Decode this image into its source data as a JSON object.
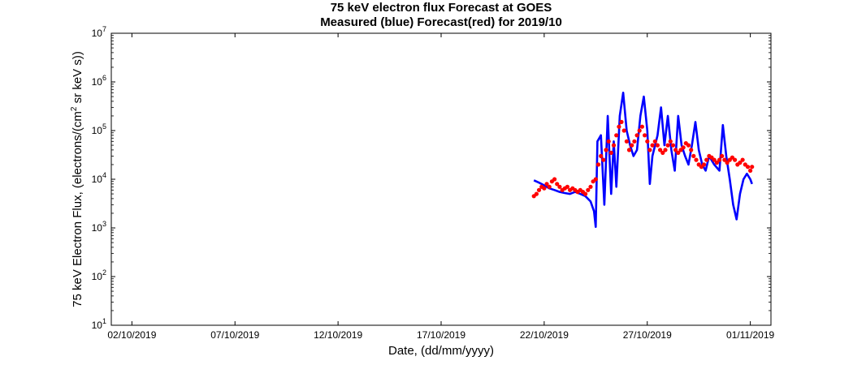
{
  "chart_data": {
    "type": "line",
    "title": "75 keV electron flux Forecast at GOES",
    "subtitle": "Measured (blue) Forecast(red) for 2019/10",
    "xlabel": "Date, (dd/mm/yyyy)",
    "ylabel": {
      "before": "75 keV Electron Flux, (electrons/(cm",
      "superscript": "2",
      "after": " sr keV s))"
    },
    "x_ticks": [
      "02/10/2019",
      "07/10/2019",
      "12/10/2019",
      "17/10/2019",
      "22/10/2019",
      "27/10/2019",
      "01/11/2019"
    ],
    "xlim": [
      "2019-10-01T00:00",
      "2019-11-02T00:00"
    ],
    "y_scale": "log",
    "ylim": [
      10,
      10000000
    ],
    "y_ticks": [
      {
        "base": "10",
        "exp": "1"
      },
      {
        "base": "10",
        "exp": "2"
      },
      {
        "base": "10",
        "exp": "3"
      },
      {
        "base": "10",
        "exp": "4"
      },
      {
        "base": "10",
        "exp": "5"
      },
      {
        "base": "10",
        "exp": "6"
      },
      {
        "base": "10",
        "exp": "7"
      }
    ],
    "grid": false,
    "series": [
      {
        "name": "Measured",
        "color": "#0000ff",
        "style": "line",
        "points": [
          [
            "2019-10-21T12:00",
            9500
          ],
          [
            "2019-10-21T18:00",
            8500
          ],
          [
            "2019-10-22T00:00",
            7500
          ],
          [
            "2019-10-22T06:00",
            6500
          ],
          [
            "2019-10-22T12:00",
            6000
          ],
          [
            "2019-10-22T18:00",
            5500
          ],
          [
            "2019-10-23T00:00",
            5200
          ],
          [
            "2019-10-23T06:00",
            5000
          ],
          [
            "2019-10-23T12:00",
            5500
          ],
          [
            "2019-10-23T18:00",
            5000
          ],
          [
            "2019-10-24T00:00",
            4500
          ],
          [
            "2019-10-24T06:00",
            3500
          ],
          [
            "2019-10-24T10:00",
            2200
          ],
          [
            "2019-10-24T12:00",
            1050
          ],
          [
            "2019-10-24T14:00",
            60000
          ],
          [
            "2019-10-24T18:00",
            80000
          ],
          [
            "2019-10-24T22:00",
            3000
          ],
          [
            "2019-10-25T02:00",
            200000
          ],
          [
            "2019-10-25T06:00",
            5000
          ],
          [
            "2019-10-25T09:00",
            60000
          ],
          [
            "2019-10-25T12:00",
            7000
          ],
          [
            "2019-10-25T16:00",
            200000
          ],
          [
            "2019-10-25T20:00",
            600000
          ],
          [
            "2019-10-26T00:00",
            100000
          ],
          [
            "2019-10-26T04:00",
            50000
          ],
          [
            "2019-10-26T08:00",
            30000
          ],
          [
            "2019-10-26T12:00",
            40000
          ],
          [
            "2019-10-26T16:00",
            200000
          ],
          [
            "2019-10-26T20:00",
            500000
          ],
          [
            "2019-10-27T00:00",
            100000
          ],
          [
            "2019-10-27T03:00",
            8000
          ],
          [
            "2019-10-27T06:00",
            30000
          ],
          [
            "2019-10-27T12:00",
            80000
          ],
          [
            "2019-10-27T16:00",
            300000
          ],
          [
            "2019-10-27T20:00",
            50000
          ],
          [
            "2019-10-28T00:00",
            200000
          ],
          [
            "2019-10-28T04:00",
            40000
          ],
          [
            "2019-10-28T08:00",
            15000
          ],
          [
            "2019-10-28T12:00",
            200000
          ],
          [
            "2019-10-28T16:00",
            50000
          ],
          [
            "2019-10-28T20:00",
            30000
          ],
          [
            "2019-10-29T00:00",
            20000
          ],
          [
            "2019-10-29T04:00",
            50000
          ],
          [
            "2019-10-29T08:00",
            150000
          ],
          [
            "2019-10-29T12:00",
            40000
          ],
          [
            "2019-10-29T16:00",
            20000
          ],
          [
            "2019-10-29T20:00",
            15000
          ],
          [
            "2019-10-30T00:00",
            30000
          ],
          [
            "2019-10-30T06:00",
            20000
          ],
          [
            "2019-10-30T12:00",
            15000
          ],
          [
            "2019-10-30T16:00",
            130000
          ],
          [
            "2019-10-30T20:00",
            30000
          ],
          [
            "2019-10-31T00:00",
            10000
          ],
          [
            "2019-10-31T04:00",
            3000
          ],
          [
            "2019-10-31T08:00",
            1500
          ],
          [
            "2019-10-31T12:00",
            5000
          ],
          [
            "2019-10-31T16:00",
            10000
          ],
          [
            "2019-10-31T20:00",
            13000
          ],
          [
            "2019-11-01T00:00",
            10000
          ],
          [
            "2019-11-01T02:00",
            8000
          ]
        ]
      },
      {
        "name": "Forecast",
        "color": "#ff0000",
        "style": "markers",
        "points": [
          [
            "2019-10-21T12:00",
            4500
          ],
          [
            "2019-10-21T15:00",
            5000
          ],
          [
            "2019-10-21T18:00",
            6000
          ],
          [
            "2019-10-21T21:00",
            7000
          ],
          [
            "2019-10-22T00:00",
            6500
          ],
          [
            "2019-10-22T03:00",
            8000
          ],
          [
            "2019-10-22T06:00",
            7000
          ],
          [
            "2019-10-22T09:00",
            9000
          ],
          [
            "2019-10-22T12:00",
            10000
          ],
          [
            "2019-10-22T15:00",
            8000
          ],
          [
            "2019-10-22T18:00",
            7000
          ],
          [
            "2019-10-22T21:00",
            6000
          ],
          [
            "2019-10-23T00:00",
            6500
          ],
          [
            "2019-10-23T03:00",
            7000
          ],
          [
            "2019-10-23T06:00",
            6000
          ],
          [
            "2019-10-23T09:00",
            6500
          ],
          [
            "2019-10-23T12:00",
            6000
          ],
          [
            "2019-10-23T15:00",
            5500
          ],
          [
            "2019-10-23T18:00",
            6000
          ],
          [
            "2019-10-23T21:00",
            5500
          ],
          [
            "2019-10-24T00:00",
            5000
          ],
          [
            "2019-10-24T03:00",
            6000
          ],
          [
            "2019-10-24T06:00",
            7000
          ],
          [
            "2019-10-24T09:00",
            9000
          ],
          [
            "2019-10-24T12:00",
            10000
          ],
          [
            "2019-10-24T15:00",
            20000
          ],
          [
            "2019-10-24T18:00",
            30000
          ],
          [
            "2019-10-24T21:00",
            25000
          ],
          [
            "2019-10-25T00:00",
            40000
          ],
          [
            "2019-10-25T03:00",
            60000
          ],
          [
            "2019-10-25T06:00",
            35000
          ],
          [
            "2019-10-25T09:00",
            50000
          ],
          [
            "2019-10-25T12:00",
            80000
          ],
          [
            "2019-10-25T15:00",
            120000
          ],
          [
            "2019-10-25T18:00",
            150000
          ],
          [
            "2019-10-25T21:00",
            100000
          ],
          [
            "2019-10-26T00:00",
            60000
          ],
          [
            "2019-10-26T03:00",
            40000
          ],
          [
            "2019-10-26T06:00",
            50000
          ],
          [
            "2019-10-26T09:00",
            60000
          ],
          [
            "2019-10-26T12:00",
            80000
          ],
          [
            "2019-10-26T15:00",
            100000
          ],
          [
            "2019-10-26T18:00",
            120000
          ],
          [
            "2019-10-26T21:00",
            80000
          ],
          [
            "2019-10-27T00:00",
            60000
          ],
          [
            "2019-10-27T03:00",
            40000
          ],
          [
            "2019-10-27T06:00",
            50000
          ],
          [
            "2019-10-27T09:00",
            60000
          ],
          [
            "2019-10-27T12:00",
            50000
          ],
          [
            "2019-10-27T15:00",
            40000
          ],
          [
            "2019-10-27T18:00",
            35000
          ],
          [
            "2019-10-27T21:00",
            40000
          ],
          [
            "2019-10-28T00:00",
            50000
          ],
          [
            "2019-10-28T03:00",
            60000
          ],
          [
            "2019-10-28T06:00",
            50000
          ],
          [
            "2019-10-28T09:00",
            40000
          ],
          [
            "2019-10-28T12:00",
            35000
          ],
          [
            "2019-10-28T15:00",
            40000
          ],
          [
            "2019-10-28T18:00",
            45000
          ],
          [
            "2019-10-28T21:00",
            55000
          ],
          [
            "2019-10-29T00:00",
            50000
          ],
          [
            "2019-10-29T03:00",
            40000
          ],
          [
            "2019-10-29T06:00",
            30000
          ],
          [
            "2019-10-29T09:00",
            25000
          ],
          [
            "2019-10-29T12:00",
            20000
          ],
          [
            "2019-10-29T15:00",
            18000
          ],
          [
            "2019-10-29T18:00",
            20000
          ],
          [
            "2019-10-29T21:00",
            25000
          ],
          [
            "2019-10-30T00:00",
            30000
          ],
          [
            "2019-10-30T03:00",
            28000
          ],
          [
            "2019-10-30T06:00",
            25000
          ],
          [
            "2019-10-30T09:00",
            22000
          ],
          [
            "2019-10-30T12:00",
            25000
          ],
          [
            "2019-10-30T15:00",
            30000
          ],
          [
            "2019-10-30T18:00",
            25000
          ],
          [
            "2019-10-30T21:00",
            22000
          ],
          [
            "2019-10-31T00:00",
            25000
          ],
          [
            "2019-10-31T03:00",
            28000
          ],
          [
            "2019-10-31T06:00",
            25000
          ],
          [
            "2019-10-31T09:00",
            20000
          ],
          [
            "2019-10-31T12:00",
            22000
          ],
          [
            "2019-10-31T15:00",
            25000
          ],
          [
            "2019-10-31T18:00",
            20000
          ],
          [
            "2019-10-31T21:00",
            18000
          ],
          [
            "2019-11-01T00:00",
            15000
          ],
          [
            "2019-11-01T02:00",
            18000
          ]
        ]
      }
    ]
  }
}
